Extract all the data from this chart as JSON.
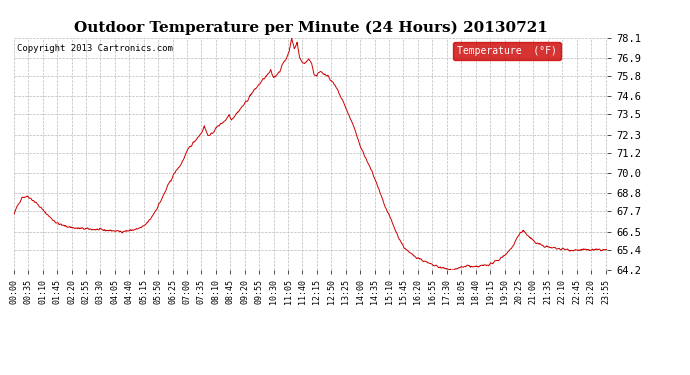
{
  "title": "Outdoor Temperature per Minute (24 Hours) 20130721",
  "copyright_text": "Copyright 2013 Cartronics.com",
  "legend_label": "Temperature  (°F)",
  "line_color": "#cc0000",
  "background_color": "#ffffff",
  "grid_color": "#bbbbbb",
  "ylim": [
    64.2,
    78.1
  ],
  "yticks": [
    64.2,
    65.4,
    66.5,
    67.7,
    68.8,
    70.0,
    71.2,
    72.3,
    73.5,
    74.6,
    75.8,
    76.9,
    78.1
  ],
  "title_fontsize": 11,
  "legend_bg_color": "#cc0000",
  "legend_text_color": "#ffffff",
  "copyright_fontsize": 6.5,
  "tick_label_fontsize": 7.5
}
